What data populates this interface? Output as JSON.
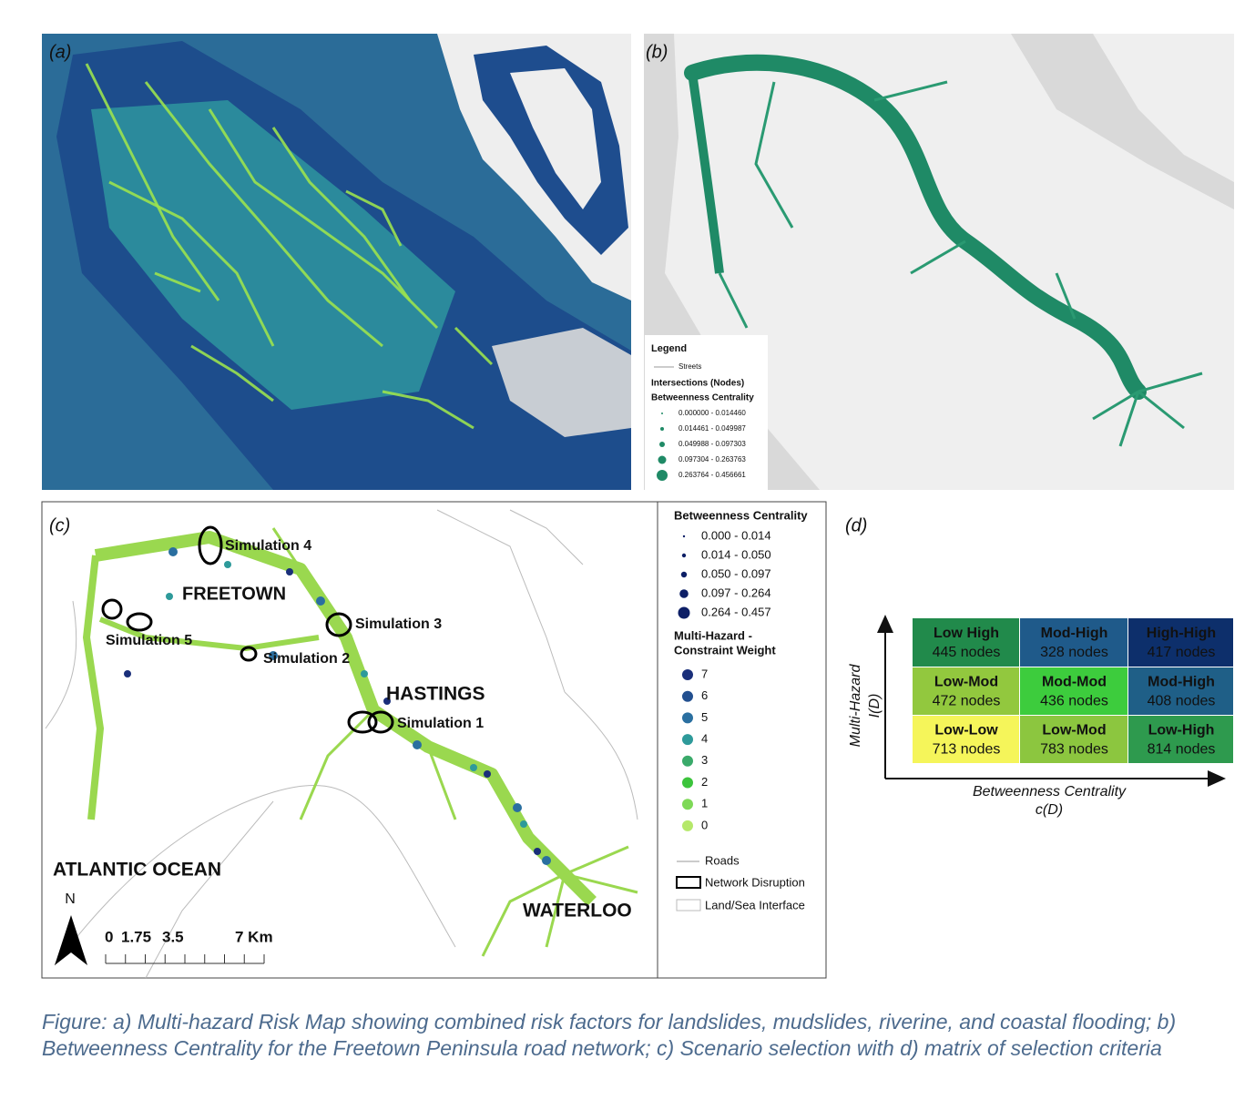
{
  "panel_a": {
    "label": "(a)"
  },
  "panel_b": {
    "label": "(b)",
    "legend": {
      "title": "Legend",
      "streets": "Streets",
      "nodes_heading": "Intersections (Nodes)",
      "measure": "Betweenness Centrality",
      "classes": [
        "0.000000 - 0.014460",
        "0.014461 - 0.049987",
        "0.049988 - 0.097303",
        "0.097304 - 0.263763",
        "0.263764 - 0.456661"
      ]
    }
  },
  "panel_c": {
    "label": "(c)",
    "places": {
      "freetown": "FREETOWN",
      "hastings": "HASTINGS",
      "waterloo": "WATERLOO",
      "ocean": "ATLANTIC OCEAN"
    },
    "simulations": [
      "Simulation 1",
      "Simulation 2",
      "Simulation 3",
      "Simulation 4",
      "Simulation 5"
    ],
    "north": "N",
    "scale_labels": [
      "0",
      "1.75",
      "3.5",
      "7 Km"
    ],
    "legend": {
      "centrality_heading": "Betweenness Centrality",
      "centrality_classes": [
        "0.000 - 0.014",
        "0.014 - 0.050",
        "0.050 - 0.097",
        "0.097 - 0.264",
        "0.264 - 0.457"
      ],
      "weight_heading": [
        "Multi-Hazard -",
        "Constraint Weight"
      ],
      "weights": [
        "7",
        "6",
        "5",
        "4",
        "3",
        "2",
        "1",
        "0"
      ],
      "roads": "Roads",
      "disruption": "Network Disruption",
      "interface": "Land/Sea Interface"
    }
  },
  "panel_d": {
    "label": "(d)",
    "y_axis": [
      "Multi-Hazard",
      "I(D)"
    ],
    "x_axis": [
      "Betweenness Centrality",
      "c(D)"
    ],
    "rows": [
      [
        {
          "class": "Low High",
          "count": "445 nodes"
        },
        {
          "class": "Mod-High",
          "count": "328 nodes"
        },
        {
          "class": "High-High",
          "count": "417 nodes"
        }
      ],
      [
        {
          "class": "Low-Mod",
          "count": "472 nodes"
        },
        {
          "class": "Mod-Mod",
          "count": "436 nodes"
        },
        {
          "class": "Mod-High",
          "count": "408 nodes"
        }
      ],
      [
        {
          "class": "Low-Low",
          "count": "713 nodes"
        },
        {
          "class": "Low-Mod",
          "count": "783 nodes"
        },
        {
          "class": "Low-High",
          "count": "814 nodes"
        }
      ]
    ]
  },
  "caption": "Figure: a) Multi-hazard Risk Map showing combined risk factors for landslides, mudslides, riverine, and coastal flooding; b) Betweenness Centrality for the Freetown Peninsula road network; c) Scenario selection with d) matrix of selection criteria"
}
